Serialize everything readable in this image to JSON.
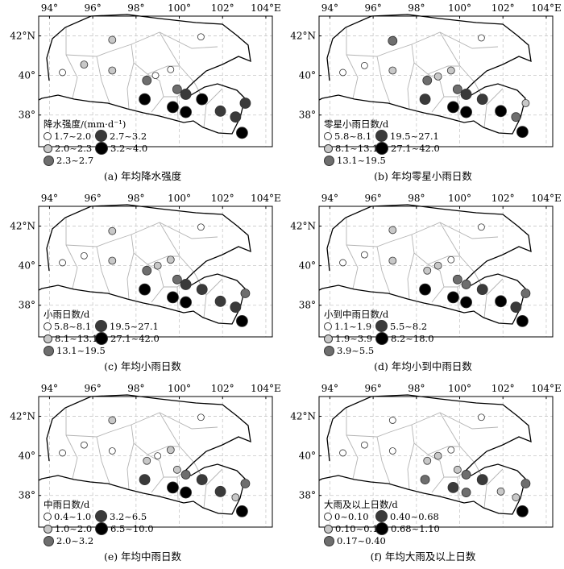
{
  "axes": {
    "x_ticks": [
      "94°",
      "96°",
      "98°",
      "100°",
      "102°",
      "104°E"
    ],
    "y_ticks": [
      "42°N",
      "40°",
      "38°"
    ]
  },
  "marker_colors": [
    "#ffffff",
    "#c8c8c8",
    "#6e6e6e",
    "#3a3a3a",
    "#000000"
  ],
  "panels": [
    {
      "caption": "(a) 年均降水强度",
      "legend_title": "降水强度/(mm·d⁻¹)",
      "legend": [
        "1.7~2.0",
        "2.0~2.3",
        "2.3~2.7",
        "2.7~3.2",
        "3.2~4.0"
      ],
      "stations": [
        {
          "lon": 94.6,
          "lat": 40.15,
          "cls": 0
        },
        {
          "lon": 95.6,
          "lat": 40.55,
          "cls": 1
        },
        {
          "lon": 96.9,
          "lat": 41.8,
          "cls": 1
        },
        {
          "lon": 96.9,
          "lat": 40.25,
          "cls": 1
        },
        {
          "lon": 98.4,
          "lat": 38.8,
          "cls": 4
        },
        {
          "lon": 98.5,
          "lat": 39.75,
          "cls": 2
        },
        {
          "lon": 98.9,
          "lat": 40.0,
          "cls": 0
        },
        {
          "lon": 99.6,
          "lat": 40.3,
          "cls": 0
        },
        {
          "lon": 99.7,
          "lat": 38.4,
          "cls": 4
        },
        {
          "lon": 99.9,
          "lat": 39.3,
          "cls": 2
        },
        {
          "lon": 100.3,
          "lat": 38.15,
          "cls": 4
        },
        {
          "lon": 100.3,
          "lat": 39.05,
          "cls": 3
        },
        {
          "lon": 101.0,
          "lat": 41.95,
          "cls": 0
        },
        {
          "lon": 101.05,
          "lat": 38.8,
          "cls": 4
        },
        {
          "lon": 101.9,
          "lat": 38.2,
          "cls": 3
        },
        {
          "lon": 102.6,
          "lat": 37.9,
          "cls": 3
        },
        {
          "lon": 103.05,
          "lat": 38.6,
          "cls": 3
        },
        {
          "lon": 102.9,
          "lat": 37.1,
          "cls": 4
        }
      ]
    },
    {
      "caption": "(b) 年均零星小雨日数",
      "legend_title": "零星小雨日数/d",
      "legend": [
        "5.8~8.1",
        "8.1~13.1",
        "13.1~19.5",
        "19.5~27.1",
        "27.1~42.0"
      ],
      "stations": [
        {
          "lon": 94.6,
          "lat": 40.15,
          "cls": 0
        },
        {
          "lon": 95.6,
          "lat": 40.5,
          "cls": 0
        },
        {
          "lon": 96.9,
          "lat": 41.75,
          "cls": 2
        },
        {
          "lon": 96.9,
          "lat": 40.25,
          "cls": 1
        },
        {
          "lon": 98.4,
          "lat": 38.8,
          "cls": 3
        },
        {
          "lon": 98.5,
          "lat": 39.75,
          "cls": 2
        },
        {
          "lon": 99.0,
          "lat": 39.95,
          "cls": 1
        },
        {
          "lon": 99.6,
          "lat": 40.25,
          "cls": 1
        },
        {
          "lon": 99.7,
          "lat": 38.4,
          "cls": 4
        },
        {
          "lon": 99.9,
          "lat": 39.3,
          "cls": 2
        },
        {
          "lon": 100.3,
          "lat": 38.15,
          "cls": 4
        },
        {
          "lon": 100.3,
          "lat": 39.05,
          "cls": 3
        },
        {
          "lon": 101.0,
          "lat": 41.9,
          "cls": 0
        },
        {
          "lon": 101.05,
          "lat": 38.8,
          "cls": 3
        },
        {
          "lon": 101.9,
          "lat": 38.2,
          "cls": 4
        },
        {
          "lon": 102.6,
          "lat": 37.9,
          "cls": 2
        },
        {
          "lon": 103.05,
          "lat": 38.6,
          "cls": 1
        },
        {
          "lon": 102.9,
          "lat": 37.15,
          "cls": 4
        }
      ]
    },
    {
      "caption": "(c) 年均小雨日数",
      "legend_title": "小雨日数/d",
      "legend": [
        "5.8~8.1",
        "8.1~13.1",
        "13.1~19.5",
        "19.5~27.1",
        "27.1~42.0"
      ],
      "stations": [
        {
          "lon": 94.6,
          "lat": 40.15,
          "cls": 0
        },
        {
          "lon": 95.6,
          "lat": 40.5,
          "cls": 0
        },
        {
          "lon": 96.9,
          "lat": 41.75,
          "cls": 1
        },
        {
          "lon": 96.9,
          "lat": 40.25,
          "cls": 1
        },
        {
          "lon": 98.4,
          "lat": 38.8,
          "cls": 4
        },
        {
          "lon": 98.5,
          "lat": 39.75,
          "cls": 2
        },
        {
          "lon": 99.0,
          "lat": 40.0,
          "cls": 1
        },
        {
          "lon": 99.6,
          "lat": 40.3,
          "cls": 1
        },
        {
          "lon": 99.7,
          "lat": 38.4,
          "cls": 4
        },
        {
          "lon": 99.9,
          "lat": 39.3,
          "cls": 2
        },
        {
          "lon": 100.3,
          "lat": 38.15,
          "cls": 4
        },
        {
          "lon": 100.3,
          "lat": 39.05,
          "cls": 3
        },
        {
          "lon": 101.0,
          "lat": 41.95,
          "cls": 0
        },
        {
          "lon": 101.05,
          "lat": 38.8,
          "cls": 3
        },
        {
          "lon": 101.9,
          "lat": 38.2,
          "cls": 3
        },
        {
          "lon": 102.6,
          "lat": 37.9,
          "cls": 3
        },
        {
          "lon": 103.05,
          "lat": 38.6,
          "cls": 2
        },
        {
          "lon": 102.9,
          "lat": 37.2,
          "cls": 4
        }
      ]
    },
    {
      "caption": "(d) 年均小到中雨日数",
      "legend_title": "小到中雨日数/d",
      "legend": [
        "1.1~1.9",
        "1.9~3.9",
        "3.9~5.5",
        "5.5~8.2",
        "8.2~18.0"
      ],
      "stations": [
        {
          "lon": 94.6,
          "lat": 40.15,
          "cls": 0
        },
        {
          "lon": 95.6,
          "lat": 40.55,
          "cls": 0
        },
        {
          "lon": 96.9,
          "lat": 41.8,
          "cls": 1
        },
        {
          "lon": 96.9,
          "lat": 40.25,
          "cls": 1
        },
        {
          "lon": 98.4,
          "lat": 38.8,
          "cls": 4
        },
        {
          "lon": 98.5,
          "lat": 39.75,
          "cls": 1
        },
        {
          "lon": 99.0,
          "lat": 40.0,
          "cls": 1
        },
        {
          "lon": 99.6,
          "lat": 40.3,
          "cls": 0
        },
        {
          "lon": 99.7,
          "lat": 38.4,
          "cls": 4
        },
        {
          "lon": 99.9,
          "lat": 39.3,
          "cls": 2
        },
        {
          "lon": 100.3,
          "lat": 38.15,
          "cls": 4
        },
        {
          "lon": 100.3,
          "lat": 39.05,
          "cls": 2
        },
        {
          "lon": 101.0,
          "lat": 41.95,
          "cls": 0
        },
        {
          "lon": 101.05,
          "lat": 38.8,
          "cls": 3
        },
        {
          "lon": 101.9,
          "lat": 38.2,
          "cls": 4
        },
        {
          "lon": 102.6,
          "lat": 37.9,
          "cls": 3
        },
        {
          "lon": 103.05,
          "lat": 38.6,
          "cls": 2
        },
        {
          "lon": 102.9,
          "lat": 37.2,
          "cls": 4
        }
      ]
    },
    {
      "caption": "(e) 年均中雨日数",
      "legend_title": "中雨日数/d",
      "legend": [
        "0.4~1.0",
        "1.0~2.0",
        "2.0~3.2",
        "3.2~6.5",
        "6.5~10.0"
      ],
      "stations": [
        {
          "lon": 94.6,
          "lat": 40.15,
          "cls": 0
        },
        {
          "lon": 95.6,
          "lat": 40.55,
          "cls": 0
        },
        {
          "lon": 96.9,
          "lat": 41.8,
          "cls": 1
        },
        {
          "lon": 96.9,
          "lat": 40.25,
          "cls": 0
        },
        {
          "lon": 98.4,
          "lat": 38.8,
          "cls": 3
        },
        {
          "lon": 98.5,
          "lat": 39.75,
          "cls": 1
        },
        {
          "lon": 99.0,
          "lat": 40.0,
          "cls": 0
        },
        {
          "lon": 99.6,
          "lat": 40.3,
          "cls": 1
        },
        {
          "lon": 99.7,
          "lat": 38.4,
          "cls": 4
        },
        {
          "lon": 99.9,
          "lat": 39.3,
          "cls": 1
        },
        {
          "lon": 100.3,
          "lat": 38.15,
          "cls": 4
        },
        {
          "lon": 100.3,
          "lat": 39.05,
          "cls": 2
        },
        {
          "lon": 101.0,
          "lat": 41.95,
          "cls": 0
        },
        {
          "lon": 101.05,
          "lat": 38.8,
          "cls": 3
        },
        {
          "lon": 101.9,
          "lat": 38.2,
          "cls": 3
        },
        {
          "lon": 102.6,
          "lat": 37.9,
          "cls": 1
        },
        {
          "lon": 103.05,
          "lat": 38.6,
          "cls": 2
        },
        {
          "lon": 102.9,
          "lat": 37.2,
          "cls": 4
        }
      ]
    },
    {
      "caption": "(f) 年均大雨及以上日数",
      "legend_title": "大雨及以上日数/d",
      "legend": [
        "0~0.10",
        "0.10~0.17",
        "0.17~0.40",
        "0.40~0.68",
        "0.68~1.10"
      ],
      "stations": [
        {
          "lon": 94.6,
          "lat": 40.15,
          "cls": 0
        },
        {
          "lon": 95.6,
          "lat": 40.55,
          "cls": 0
        },
        {
          "lon": 96.9,
          "lat": 41.8,
          "cls": 0
        },
        {
          "lon": 96.9,
          "lat": 40.25,
          "cls": 0
        },
        {
          "lon": 98.4,
          "lat": 38.8,
          "cls": 2
        },
        {
          "lon": 98.5,
          "lat": 39.75,
          "cls": 1
        },
        {
          "lon": 99.0,
          "lat": 40.0,
          "cls": 1
        },
        {
          "lon": 99.6,
          "lat": 40.3,
          "cls": 0
        },
        {
          "lon": 99.7,
          "lat": 38.4,
          "cls": 3
        },
        {
          "lon": 99.9,
          "lat": 39.3,
          "cls": 1
        },
        {
          "lon": 100.3,
          "lat": 38.15,
          "cls": 2
        },
        {
          "lon": 100.3,
          "lat": 39.05,
          "cls": 2
        },
        {
          "lon": 101.0,
          "lat": 41.95,
          "cls": 0
        },
        {
          "lon": 101.05,
          "lat": 38.8,
          "cls": 3
        },
        {
          "lon": 101.9,
          "lat": 38.2,
          "cls": 1
        },
        {
          "lon": 102.6,
          "lat": 37.9,
          "cls": 1
        },
        {
          "lon": 103.05,
          "lat": 38.6,
          "cls": 2
        },
        {
          "lon": 102.9,
          "lat": 37.2,
          "cls": 4
        }
      ]
    }
  ]
}
